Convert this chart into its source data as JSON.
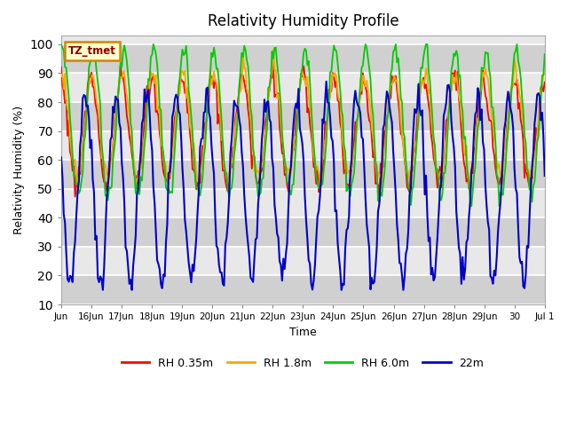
{
  "title": "Relativity Humidity Profile",
  "xlabel": "Time",
  "ylabel": "Relativity Humidity (%)",
  "ylim": [
    10,
    103
  ],
  "yticks": [
    10,
    20,
    30,
    40,
    50,
    60,
    70,
    80,
    90,
    100
  ],
  "background_color": "#ffffff",
  "plot_bg_light": "#e8e8e8",
  "plot_bg_dark": "#d0d0d0",
  "grid_color": "#ffffff",
  "tz_label": "TZ_tmet",
  "legend_entries": [
    "RH 0.35m",
    "RH 1.8m",
    "RH 6.0m",
    "22m"
  ],
  "line_colors": [
    "#ff0000",
    "#ffa500",
    "#00cc00",
    "#0000cc"
  ],
  "x_tick_labels": [
    "Jun",
    "16Jun",
    "17Jun",
    "18Jun",
    "19Jun",
    "20Jun",
    "21Jun",
    "22Jun",
    "23Jun",
    "24Jun",
    "25Jun",
    "26Jun",
    "27Jun",
    "28Jun",
    "29Jun",
    "30",
    "Jul 1"
  ],
  "num_days": 16,
  "points_per_day": 24
}
